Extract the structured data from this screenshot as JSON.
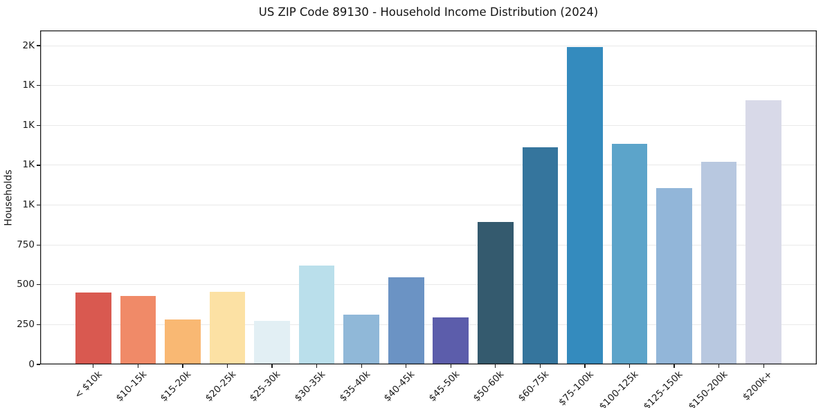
{
  "chart_data": {
    "type": "bar",
    "title": "US ZIP Code 89130 - Household Income Distribution (2024)",
    "xlabel": "",
    "ylabel": "Households",
    "categories": [
      "< $10k",
      "$10-15k",
      "$15-20k",
      "$20-25k",
      "$25-30k",
      "$30-35k",
      "$35-40k",
      "$40-45k",
      "$45-50k",
      "$50-60k",
      "$60-75k",
      "$75-100k",
      "$100-125k",
      "$125-150k",
      "$150-200k",
      "$200k+"
    ],
    "values": [
      450,
      428,
      282,
      455,
      275,
      620,
      312,
      549,
      295,
      893,
      1364,
      1993,
      1383,
      1105,
      1270,
      1656
    ],
    "bar_colors": [
      "#d95950",
      "#f08a68",
      "#f9b873",
      "#fce1a4",
      "#e2eff4",
      "#badfeb",
      "#90b8d8",
      "#6b93c4",
      "#5c5dab",
      "#345a6e",
      "#35759d",
      "#348bbe",
      "#5ca4ca",
      "#92b6d9",
      "#b8c8e0",
      "#d8d9e8"
    ],
    "ylim": [
      0,
      2096
    ],
    "yticks": [
      {
        "value": 0,
        "label": "0"
      },
      {
        "value": 250,
        "label": "250"
      },
      {
        "value": 500,
        "label": "500"
      },
      {
        "value": 750,
        "label": "750"
      },
      {
        "value": 1000,
        "label": "1K"
      },
      {
        "value": 1250,
        "label": "1K"
      },
      {
        "value": 1500,
        "label": "1K"
      },
      {
        "value": 1750,
        "label": "1K"
      },
      {
        "value": 2000,
        "label": "2K"
      }
    ],
    "grid": {
      "axis": "y",
      "color": "#e9e9e9",
      "visible": true
    },
    "bar_width_fraction": 0.8,
    "legend": null,
    "spine_color": "#1a1a1a",
    "text_color": "#1a1a1a",
    "background_color": "#ffffff"
  }
}
